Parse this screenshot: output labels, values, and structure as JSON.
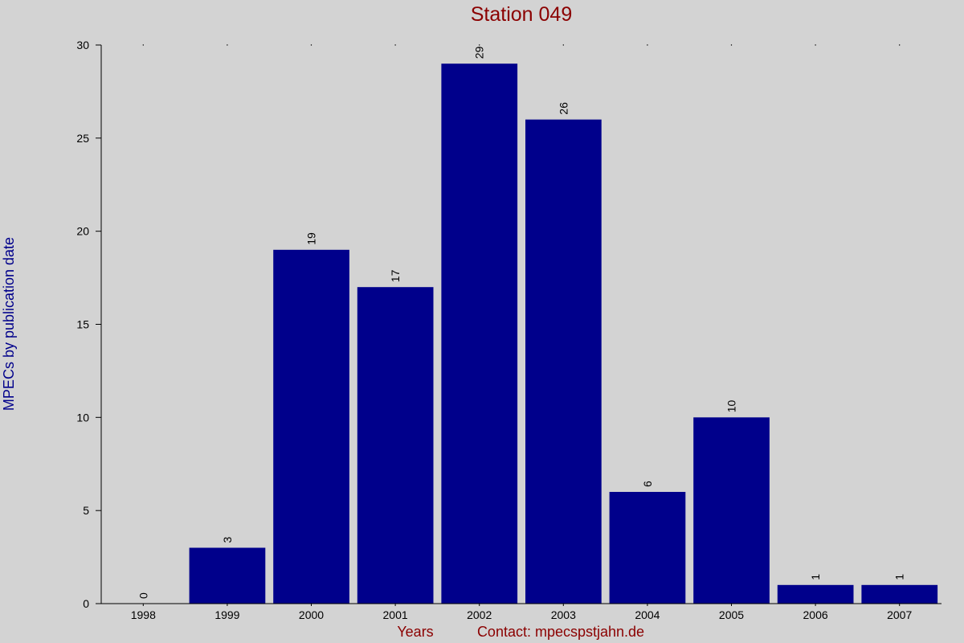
{
  "chart_data": {
    "type": "bar",
    "title": "Station 049",
    "xlabel": "Years",
    "ylabel": "MPECs by publication date",
    "footer": "Contact: mpecspstjahn.de",
    "categories": [
      "1998",
      "1999",
      "2000",
      "2001",
      "2002",
      "2003",
      "2004",
      "2005",
      "2006",
      "2007"
    ],
    "values": [
      0,
      3,
      19,
      17,
      29,
      26,
      6,
      10,
      1,
      1
    ],
    "ylim": [
      0,
      30
    ],
    "yticks": [
      0,
      5,
      10,
      15,
      20,
      25,
      30
    ],
    "grid": false,
    "data_labels": true,
    "colors": {
      "bar": "#00008b",
      "background": "#d3d3d3",
      "title": "#8b0000",
      "ylabel": "#00008b",
      "xlabel": "#8b0000",
      "axis": "#000000"
    }
  }
}
